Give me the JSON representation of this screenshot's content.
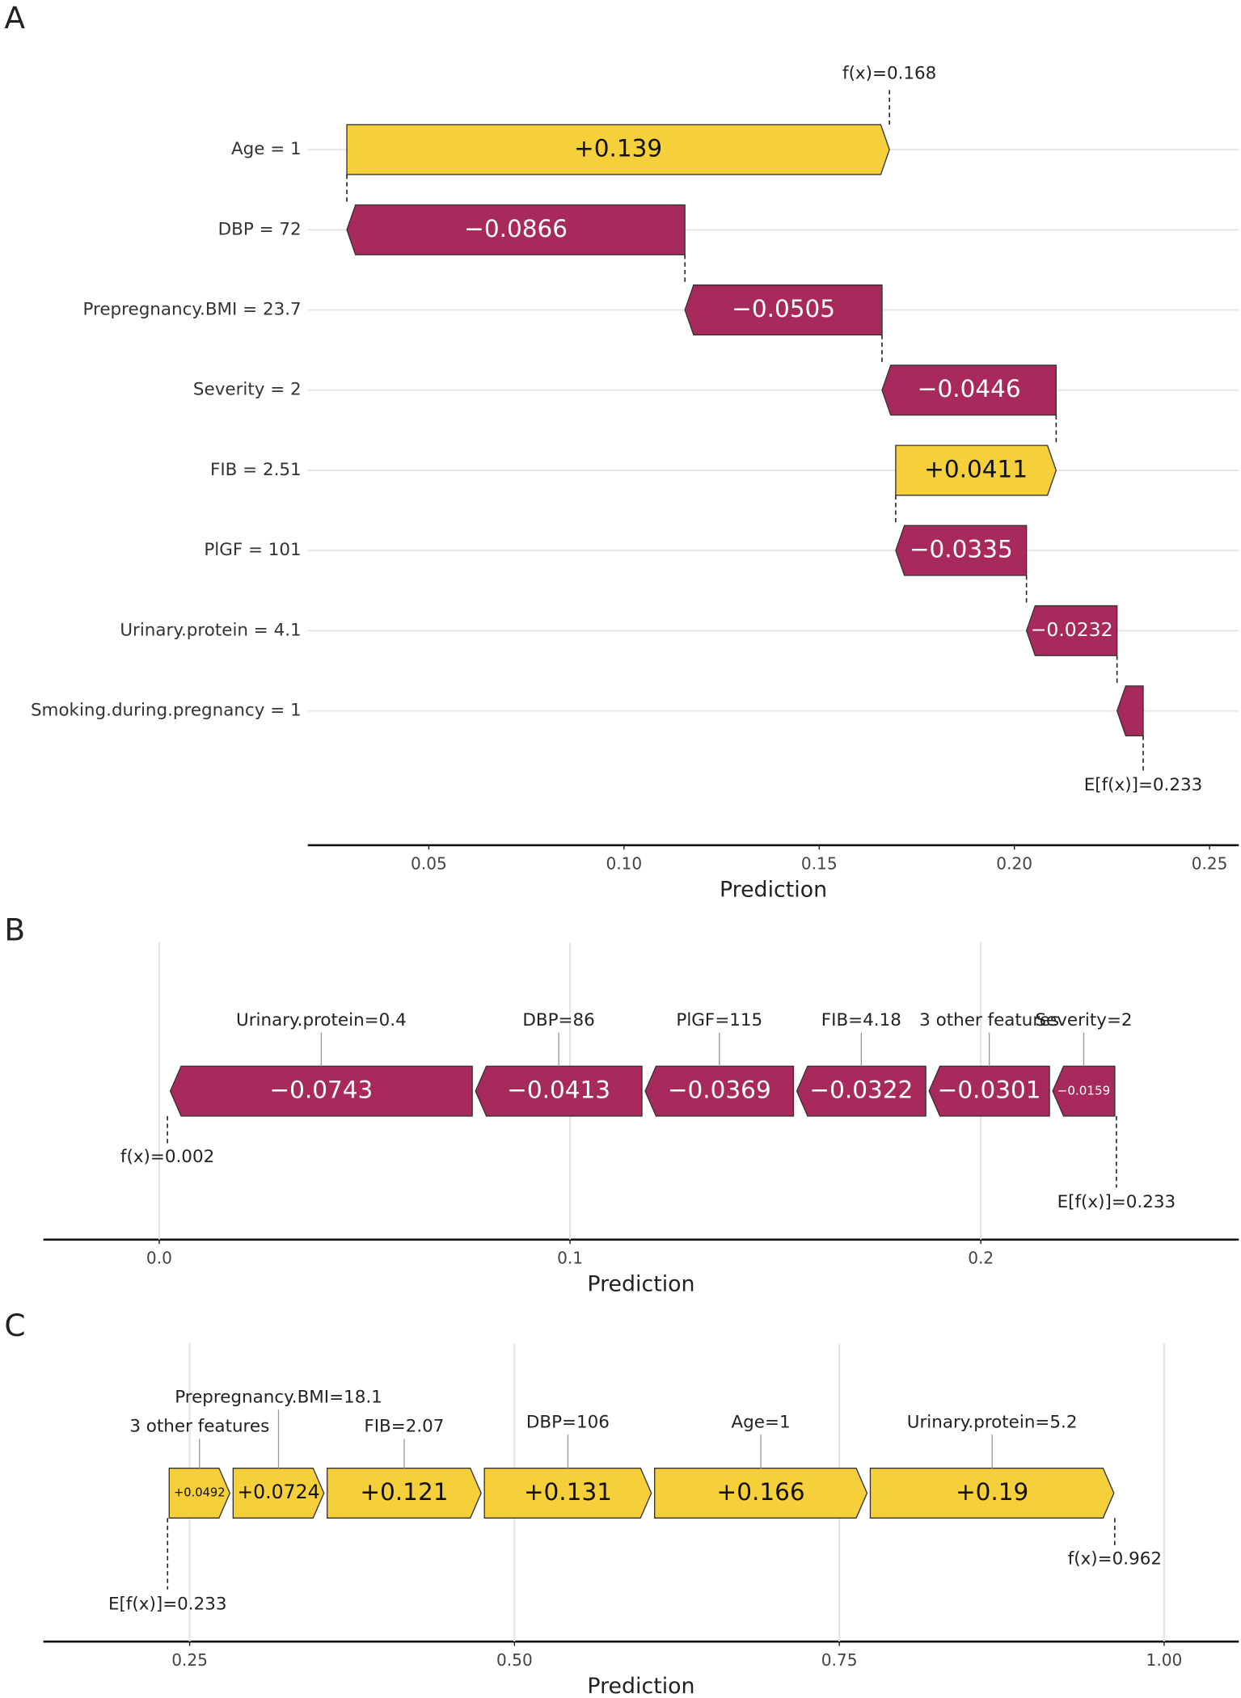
{
  "chart_data": [
    {
      "panel": "A",
      "type": "waterfall",
      "categories": [
        "Age = 1",
        "DBP = 72",
        "Prepregnancy.BMI = 23.7",
        "Severity = 2",
        "FIB = 2.51",
        "PlGF = 101",
        "Urinary.protein = 4.1",
        "Smoking.during.pregnancy = 1"
      ],
      "values": [
        0.139,
        -0.0866,
        -0.0505,
        -0.0446,
        0.0411,
        -0.0335,
        -0.0232,
        -0.0067
      ],
      "value_labels": [
        "+0.139",
        "−0.0866",
        "−0.0505",
        "−0.0446",
        "+0.0411",
        "−0.0335",
        "−0.0232",
        null
      ],
      "fx": {
        "value": 0.168,
        "label": "f(x)=0.168"
      },
      "base": {
        "value": 0.233,
        "label": "E[f(x)]=0.233"
      },
      "xlim": [
        0.019,
        0.2575
      ],
      "xticks": [
        0.05,
        {
          "value": 0.1,
          "label": "0.10"
        },
        0.15,
        {
          "value": 0.2,
          "label": "0.20"
        },
        0.25
      ],
      "xlabel": "Prediction",
      "grid": true,
      "colors": {
        "positive": "#f5d03b",
        "negative": "#a8295c"
      }
    },
    {
      "panel": "B",
      "type": "force",
      "categories": [
        "Urinary.protein=0.4",
        "DBP=86",
        "PlGF=115",
        "FIB=4.18",
        "3 other features",
        "Severity=2"
      ],
      "values": [
        -0.0743,
        -0.0413,
        -0.0369,
        -0.0322,
        -0.0301,
        -0.0159
      ],
      "value_labels": [
        "−0.0743",
        "−0.0413",
        "−0.0369",
        "−0.0322",
        "−0.0301",
        "−0.0159"
      ],
      "fx": {
        "value": 0.002,
        "label": "f(x)=0.002"
      },
      "base": {
        "value": 0.233,
        "label": "E[f(x)]=0.233"
      },
      "xlim": [
        -0.0282,
        0.2628
      ],
      "xticks": [
        {
          "value": 0,
          "label": "0.0"
        },
        0.1,
        0.2
      ],
      "xlabel": "Prediction",
      "grid": true,
      "colors": {
        "positive": "#f5d03b",
        "negative": "#a8295c"
      }
    },
    {
      "panel": "C",
      "type": "force",
      "categories": [
        "3 other features",
        "Prepregnancy.BMI=18.1",
        "FIB=2.07",
        "DBP=106",
        "Age=1",
        "Urinary.protein=5.2"
      ],
      "values": [
        0.0492,
        0.0724,
        0.121,
        0.131,
        0.166,
        0.19
      ],
      "value_labels": [
        "+0.0492",
        "+0.0724",
        "+0.121",
        "+0.131",
        "+0.166",
        "+0.19"
      ],
      "fx": {
        "value": 0.962,
        "label": "f(x)=0.962"
      },
      "base": {
        "value": 0.233,
        "label": "E[f(x)]=0.233"
      },
      "xlim": [
        0.1374,
        1.0575
      ],
      "xticks": [
        0.25,
        {
          "value": 0.5,
          "label": "0.50"
        },
        0.75,
        {
          "value": 1,
          "label": "1.00"
        }
      ],
      "xlabel": "Prediction",
      "grid": true,
      "colors": {
        "positive": "#f5d03b",
        "negative": "#a8295c"
      }
    }
  ]
}
